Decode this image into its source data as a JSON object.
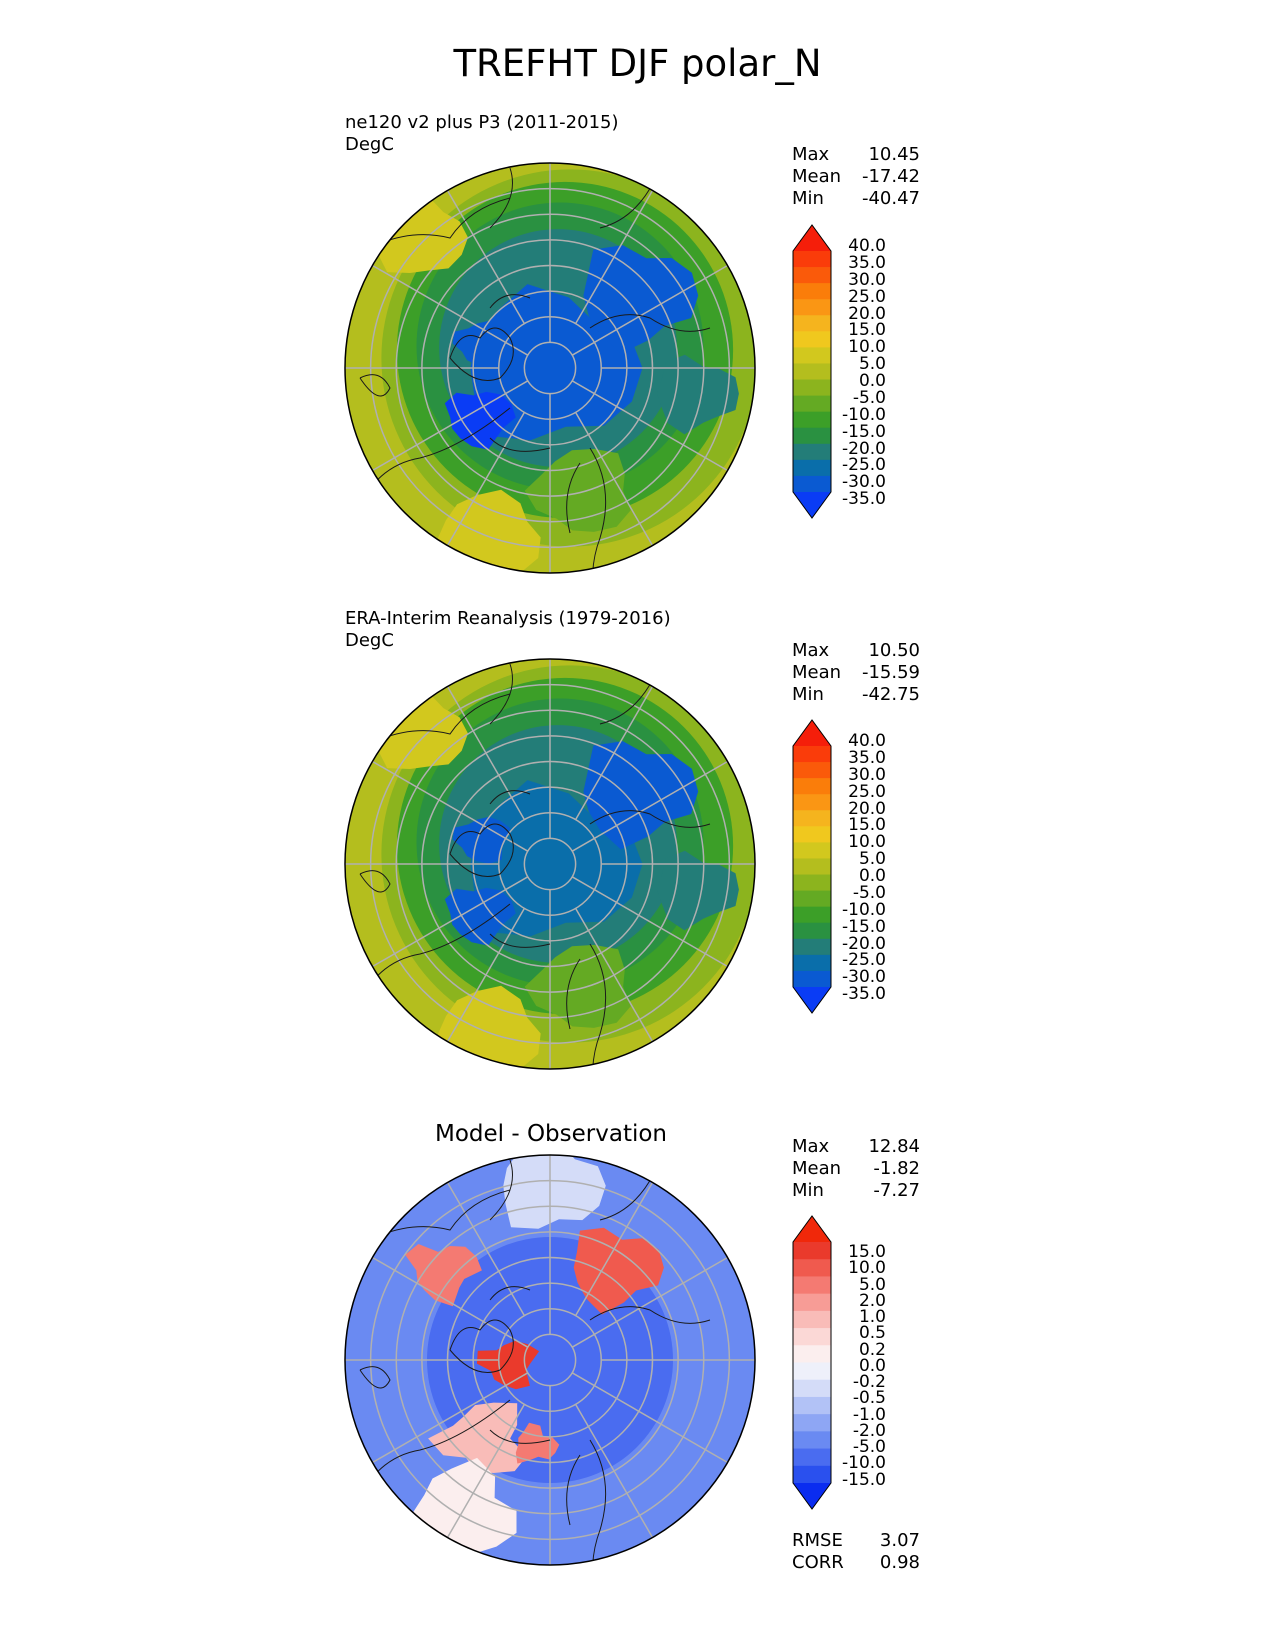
{
  "title": "TREFHT DJF polar_N",
  "panels": [
    {
      "id": "test",
      "title_line1": "ne120 v2 plus P3 (2011-2015)",
      "title_line2": "DegC",
      "stats": [
        {
          "label": "Max",
          "value": "10.45"
        },
        {
          "label": "Mean",
          "value": "-17.42"
        },
        {
          "label": "Min",
          "value": "-40.47"
        }
      ],
      "colorbar_labels": [
        "40.0",
        "35.0",
        "30.0",
        "25.0",
        "20.0",
        "15.0",
        "10.0",
        "5.0",
        "0.0",
        "-5.0",
        "-10.0",
        "-15.0",
        "-20.0",
        "-25.0",
        "-30.0",
        "-35.0"
      ]
    },
    {
      "id": "reference",
      "title_line1": "ERA-Interim Reanalysis (1979-2016)",
      "title_line2": "DegC",
      "stats": [
        {
          "label": "Max",
          "value": "10.50"
        },
        {
          "label": "Mean",
          "value": "-15.59"
        },
        {
          "label": "Min",
          "value": "-42.75"
        }
      ],
      "colorbar_labels": [
        "40.0",
        "35.0",
        "30.0",
        "25.0",
        "20.0",
        "15.0",
        "10.0",
        "5.0",
        "0.0",
        "-5.0",
        "-10.0",
        "-15.0",
        "-20.0",
        "-25.0",
        "-30.0",
        "-35.0"
      ]
    },
    {
      "id": "difference",
      "title": "Model - Observation",
      "stats": [
        {
          "label": "Max",
          "value": "12.84"
        },
        {
          "label": "Mean",
          "value": "-1.82"
        },
        {
          "label": "Min",
          "value": "-7.27"
        }
      ],
      "colorbar_labels": [
        "15.0",
        "10.0",
        "5.0",
        "2.0",
        "1.0",
        "0.5",
        "0.2",
        "0.0",
        "-0.2",
        "-0.5",
        "-1.0",
        "-2.0",
        "-5.0",
        "-10.0",
        "-15.0"
      ],
      "metrics": [
        {
          "label": "RMSE",
          "value": "3.07"
        },
        {
          "label": "CORR",
          "value": "0.98"
        }
      ]
    }
  ],
  "chart_data": [
    {
      "type": "heatmap",
      "projection": "north polar stereographic",
      "title": "ne120 v2 plus P3 (2011-2015)",
      "units": "DegC",
      "stats": {
        "max": 10.45,
        "mean": -17.42,
        "min": -40.47
      },
      "levels": [
        -35,
        -30,
        -25,
        -20,
        -15,
        -10,
        -5,
        0,
        5,
        10,
        15,
        20,
        25,
        30,
        35,
        40
      ],
      "colors": [
        "#0a3cf5",
        "#0a5ad2",
        "#0a6eaa",
        "#237d78",
        "#2a9141",
        "#3c9f28",
        "#64aa23",
        "#8cb41e",
        "#b4be1e",
        "#d2c81e",
        "#f0c81e",
        "#f5b41e",
        "#fa9614",
        "#fa7d0a",
        "#fa5a0a",
        "#fa3c0a",
        "#f51e0a"
      ]
    },
    {
      "type": "heatmap",
      "projection": "north polar stereographic",
      "title": "ERA-Interim Reanalysis (1979-2016)",
      "units": "DegC",
      "stats": {
        "max": 10.5,
        "mean": -15.59,
        "min": -42.75
      },
      "levels": [
        -35,
        -30,
        -25,
        -20,
        -15,
        -10,
        -5,
        0,
        5,
        10,
        15,
        20,
        25,
        30,
        35,
        40
      ],
      "colors": [
        "#0a3cf5",
        "#0a5ad2",
        "#0a6eaa",
        "#237d78",
        "#2a9141",
        "#3c9f28",
        "#64aa23",
        "#8cb41e",
        "#b4be1e",
        "#d2c81e",
        "#f0c81e",
        "#f5b41e",
        "#fa9614",
        "#fa7d0a",
        "#fa5a0a",
        "#fa3c0a",
        "#f51e0a"
      ]
    },
    {
      "type": "heatmap",
      "projection": "north polar stereographic",
      "title": "Model - Observation",
      "stats": {
        "max": 12.84,
        "mean": -1.82,
        "min": -7.27,
        "rmse": 3.07,
        "corr": 0.98
      },
      "levels": [
        -15,
        -10,
        -5,
        -2,
        -1,
        -0.5,
        -0.2,
        0,
        0.2,
        0.5,
        1,
        2,
        5,
        10,
        15
      ],
      "colors": [
        "#0a2cf0",
        "#2a50ee",
        "#4a6cf0",
        "#6a8af2",
        "#8ea6f4",
        "#b2c2f6",
        "#d4dcf8",
        "#eef0fa",
        "#fbeeee",
        "#fbd8d6",
        "#f9bcb8",
        "#f79c96",
        "#f47a72",
        "#f05a4e",
        "#ea3a2c",
        "#f0280a"
      ]
    }
  ]
}
